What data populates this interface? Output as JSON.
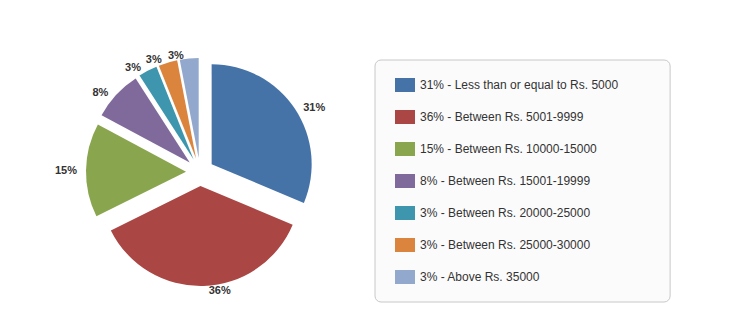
{
  "chart_data": {
    "type": "pie",
    "categories": [
      "31% - Less than or equal to Rs. 5000",
      "36% - Between Rs. 5001-9999",
      "15% - Between Rs. 10000-15000",
      "8% - Between Rs. 15001-19999",
      "3% - Between Rs. 20000-25000",
      "3% - Between Rs. 25000-30000",
      "3% - Above Rs. 35000"
    ],
    "values": [
      31,
      36,
      15,
      8,
      3,
      3,
      3
    ],
    "value_labels": [
      "31%",
      "36%",
      "15%",
      "8%",
      "3%",
      "3%",
      "3%"
    ],
    "colors": [
      "#4572a7",
      "#aa4643",
      "#89a54e",
      "#80699b",
      "#3d96ae",
      "#db843d",
      "#92a8cd"
    ],
    "data_labels": true,
    "legend": "right"
  }
}
